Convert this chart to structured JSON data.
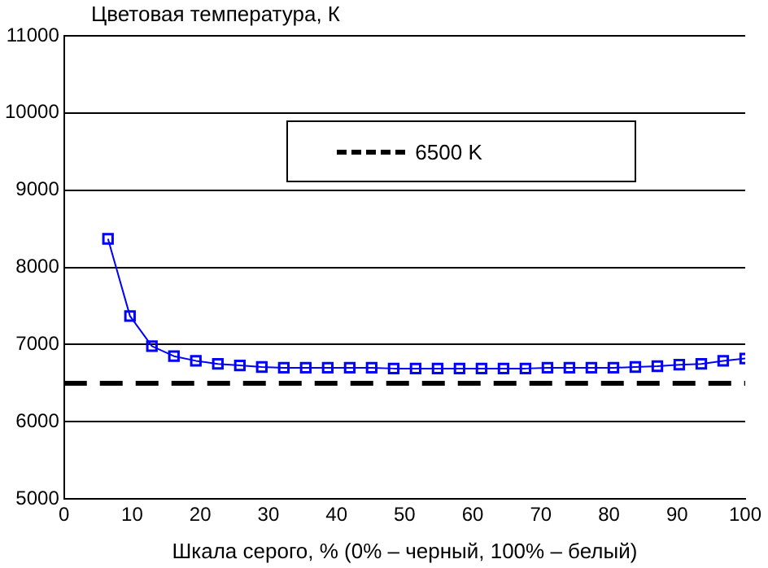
{
  "chart_data": {
    "type": "line",
    "ylabel": "Цветовая температура, К",
    "xlabel": "Шкала серого, % (0% – черный, 100% – белый)",
    "x": [
      6.45,
      9.68,
      12.9,
      16.13,
      19.35,
      22.58,
      25.81,
      29.03,
      32.26,
      35.48,
      38.71,
      41.94,
      45.16,
      48.39,
      51.61,
      54.84,
      58.06,
      61.29,
      64.52,
      67.74,
      70.97,
      74.19,
      77.42,
      80.65,
      83.87,
      87.1,
      90.32,
      93.55,
      96.77,
      100
    ],
    "series": [
      {
        "color": "#0000ff",
        "values": [
          8370,
          7370,
          6980,
          6850,
          6790,
          6750,
          6730,
          6710,
          6700,
          6700,
          6700,
          6700,
          6700,
          6690,
          6690,
          6690,
          6690,
          6690,
          6690,
          6690,
          6700,
          6700,
          6700,
          6700,
          6710,
          6720,
          6740,
          6750,
          6790,
          6820
        ]
      }
    ],
    "ref_lines": [
      {
        "axis": "y",
        "value": 6500,
        "label": "6500 K",
        "color": "#000000",
        "line_style": "dashed"
      }
    ],
    "xlim": [
      0,
      100
    ],
    "xticks": [
      0,
      10,
      20,
      30,
      40,
      50,
      60,
      70,
      80,
      90,
      100
    ],
    "ylim": [
      5000,
      11000
    ],
    "yticks": [
      5000,
      6000,
      7000,
      8000,
      9000,
      10000,
      11000
    ],
    "grid": "y",
    "legend": "top",
    "marker": "square",
    "line_style": "solid"
  }
}
